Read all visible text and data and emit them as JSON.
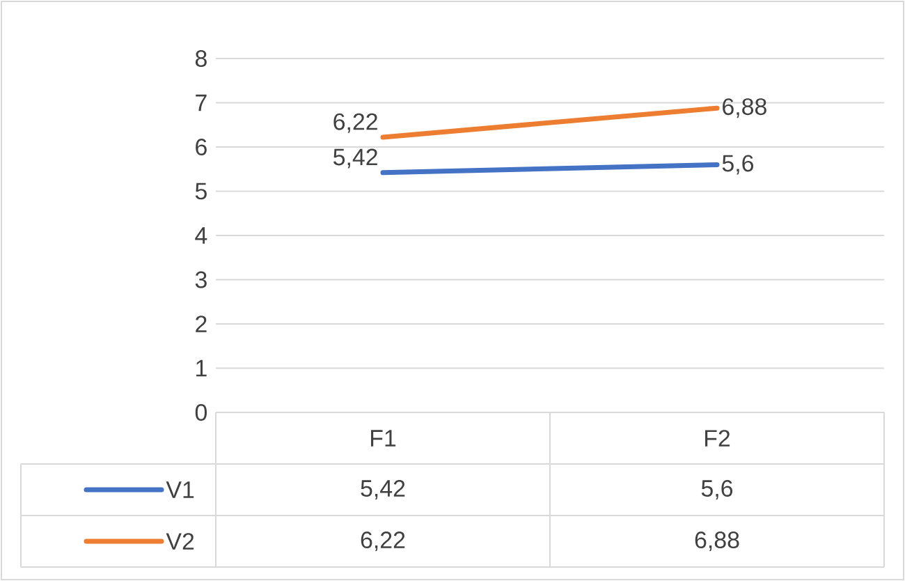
{
  "chart_data": {
    "type": "line",
    "categories": [
      "F1",
      "F2"
    ],
    "series": [
      {
        "name": "V1",
        "color": "#4472c4",
        "values": [
          5.42,
          5.6
        ],
        "value_labels": [
          "5,42",
          "5,6"
        ]
      },
      {
        "name": "V2",
        "color": "#ed7d31",
        "values": [
          6.22,
          6.88
        ],
        "value_labels": [
          "6,22",
          "6,88"
        ]
      }
    ],
    "ylim": [
      0,
      8
    ],
    "yticks": [
      0,
      1,
      2,
      3,
      4,
      5,
      6,
      7,
      8
    ],
    "grid": "y",
    "legend": "bottom left",
    "marker": "none",
    "line_style": "solid"
  }
}
